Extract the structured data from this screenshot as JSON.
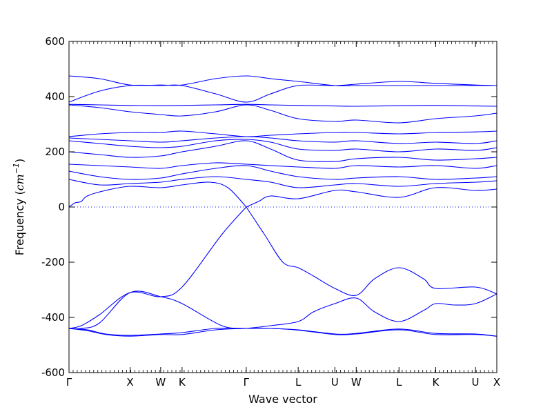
{
  "chart_data": {
    "type": "line",
    "title": "",
    "xlabel": "Wave vector",
    "ylabel": "Frequency (cm⁻¹)",
    "ylabel_main": "Frequency (",
    "ylabel_unit": "cm",
    "ylabel_exp": "−1",
    "ylabel_close": ")",
    "ylim": [
      -600,
      600
    ],
    "yticks": [
      -600,
      -400,
      -200,
      0,
      200,
      400,
      600
    ],
    "xlim": [
      0,
      7.0
    ],
    "high_symmetry_points": [
      {
        "label": "Γ",
        "x": 0.0
      },
      {
        "label": "X",
        "x": 1.0
      },
      {
        "label": "W",
        "x": 1.5
      },
      {
        "label": "K",
        "x": 1.85
      },
      {
        "label": "Γ",
        "x": 2.9
      },
      {
        "label": "L",
        "x": 3.75
      },
      {
        "label": "U",
        "x": 4.35
      },
      {
        "label": "W",
        "x": 4.7
      },
      {
        "label": "L",
        "x": 5.4
      },
      {
        "label": "K",
        "x": 6.0
      },
      {
        "label": "U",
        "x": 6.65
      },
      {
        "label": "X",
        "x": 7.0
      }
    ],
    "zero_line": true,
    "line_color": "#0000ff",
    "branches": [
      {
        "x": [
          0,
          0.2,
          0.5,
          1.0,
          1.5,
          1.85,
          2.5,
          2.9
        ],
        "y": [
          -440,
          -430,
          -390,
          -310,
          -325,
          -290,
          -100,
          0
        ]
      },
      {
        "x": [
          0,
          0.2,
          0.5,
          1.0,
          1.5,
          1.85,
          2.5,
          2.9
        ],
        "y": [
          -440,
          -440,
          -420,
          -310,
          -325,
          -350,
          -430,
          -440
        ]
      },
      {
        "x": [
          0,
          0.3,
          0.6,
          1.0,
          1.5,
          1.85,
          2.4,
          2.9
        ],
        "y": [
          -440,
          -445,
          -460,
          -465,
          -460,
          -455,
          -440,
          -440
        ]
      },
      {
        "x": [
          0,
          0.3,
          0.6,
          1.0,
          1.5,
          1.85,
          2.4,
          2.9
        ],
        "y": [
          -440,
          -448,
          -462,
          -468,
          -462,
          -462,
          -445,
          -440
        ]
      },
      {
        "x": [
          2.9,
          3.2,
          3.5,
          3.75,
          4.0,
          4.35,
          4.7,
          5.0,
          5.4,
          5.8,
          6.0,
          6.65,
          7.0
        ],
        "y": [
          0,
          -100,
          -200,
          -220,
          -250,
          -295,
          -320,
          -260,
          -220,
          -260,
          -295,
          -290,
          -315
        ]
      },
      {
        "x": [
          2.9,
          3.3,
          3.75,
          4.0,
          4.35,
          4.7,
          5.0,
          5.4,
          5.8,
          6.0,
          6.3,
          6.65,
          7.0
        ],
        "y": [
          -440,
          -430,
          -415,
          -380,
          -350,
          -330,
          -380,
          -415,
          -375,
          -350,
          -355,
          -350,
          -315
        ]
      },
      {
        "x": [
          2.9,
          3.3,
          3.75,
          4.35,
          4.7,
          5.4,
          6.0,
          6.65,
          7.0
        ],
        "y": [
          -440,
          -440,
          -445,
          -460,
          -458,
          -442,
          -458,
          -460,
          -468
        ]
      },
      {
        "x": [
          2.9,
          3.3,
          3.75,
          4.35,
          4.7,
          5.4,
          6.0,
          6.65,
          7.0
        ],
        "y": [
          -440,
          -440,
          -446,
          -462,
          -460,
          -445,
          -462,
          -462,
          -468
        ]
      },
      {
        "x": [
          0,
          0.1,
          0.2,
          0.3,
          0.6,
          1.0,
          1.5,
          1.85,
          2.3,
          2.6,
          2.9
        ],
        "y": [
          0,
          15,
          20,
          40,
          60,
          75,
          70,
          80,
          90,
          70,
          0
        ]
      },
      {
        "x": [
          2.9,
          3.1,
          3.3,
          3.75,
          4.35,
          4.7,
          5.4,
          6.0,
          6.65,
          7.0
        ],
        "y": [
          0,
          20,
          40,
          30,
          60,
          55,
          35,
          70,
          60,
          65
        ]
      },
      {
        "x": [
          0,
          0.5,
          1.0,
          1.5,
          1.85,
          2.4,
          2.9,
          3.3,
          3.75,
          4.35,
          4.7,
          5.4,
          6.0,
          6.65,
          7.0
        ],
        "y": [
          100,
          80,
          85,
          90,
          100,
          110,
          100,
          90,
          70,
          80,
          85,
          75,
          85,
          90,
          95
        ]
      },
      {
        "x": [
          0,
          0.5,
          1.0,
          1.5,
          1.85,
          2.4,
          2.9,
          3.3,
          3.75,
          4.35,
          4.7,
          5.4,
          6.0,
          6.65,
          7.0
        ],
        "y": [
          130,
          110,
          100,
          105,
          120,
          140,
          150,
          130,
          110,
          100,
          105,
          110,
          100,
          105,
          110
        ]
      },
      {
        "x": [
          0,
          0.5,
          1.0,
          1.5,
          1.85,
          2.4,
          2.9,
          3.3,
          3.75,
          4.35,
          4.7,
          5.4,
          6.0,
          6.65,
          7.0
        ],
        "y": [
          155,
          150,
          145,
          140,
          150,
          160,
          155,
          150,
          145,
          140,
          150,
          145,
          150,
          140,
          150
        ]
      },
      {
        "x": [
          0,
          0.5,
          1.0,
          1.5,
          1.85,
          2.4,
          2.9,
          3.3,
          3.75,
          4.35,
          4.7,
          5.4,
          6.0,
          6.65,
          7.0
        ],
        "y": [
          200,
          190,
          180,
          185,
          200,
          220,
          240,
          210,
          170,
          165,
          175,
          180,
          170,
          175,
          180
        ]
      },
      {
        "x": [
          0,
          0.5,
          1.0,
          1.5,
          1.85,
          2.4,
          2.9,
          3.3,
          3.75,
          4.35,
          4.7,
          5.4,
          6.0,
          6.65,
          7.0
        ],
        "y": [
          240,
          230,
          220,
          215,
          220,
          240,
          245,
          235,
          210,
          205,
          210,
          200,
          210,
          205,
          215
        ]
      },
      {
        "x": [
          0,
          0.5,
          1.0,
          1.5,
          1.85,
          2.4,
          2.9,
          3.3,
          3.75,
          4.35,
          4.7,
          5.4,
          6.0,
          6.65,
          7.0
        ],
        "y": [
          255,
          265,
          270,
          270,
          275,
          265,
          255,
          260,
          265,
          270,
          270,
          265,
          270,
          272,
          275
        ]
      },
      {
        "x": [
          0,
          0.5,
          1.0,
          1.5,
          1.85,
          2.4,
          2.9,
          3.3,
          3.75,
          4.35,
          4.7,
          5.4,
          6.0,
          6.65,
          7.0
        ],
        "y": [
          250,
          245,
          240,
          235,
          240,
          250,
          255,
          250,
          240,
          235,
          240,
          230,
          235,
          230,
          240
        ]
      },
      {
        "x": [
          0,
          0.5,
          1.0,
          1.5,
          1.85,
          2.4,
          2.9,
          3.3,
          3.75,
          4.35,
          4.7,
          5.4,
          6.0,
          6.65,
          7.0
        ],
        "y": [
          370,
          360,
          345,
          335,
          330,
          345,
          370,
          350,
          320,
          310,
          315,
          305,
          320,
          330,
          340
        ]
      },
      {
        "x": [
          0,
          0.5,
          1.0,
          1.5,
          1.85,
          2.4,
          2.9,
          3.3,
          3.75,
          4.35,
          4.7,
          5.4,
          6.0,
          6.65,
          7.0
        ],
        "y": [
          372,
          370,
          368,
          367,
          368,
          370,
          372,
          370,
          368,
          366,
          365,
          367,
          368,
          366,
          365
        ]
      },
      {
        "x": [
          0,
          0.5,
          1.0,
          1.5,
          1.85,
          2.4,
          2.9,
          3.3,
          3.75,
          4.35,
          4.7,
          5.4,
          6.0,
          6.65,
          7.0
        ],
        "y": [
          380,
          420,
          440,
          440,
          440,
          410,
          380,
          410,
          440,
          440,
          445,
          455,
          448,
          442,
          440
        ]
      },
      {
        "x": [
          0,
          0.5,
          1.0,
          1.5,
          1.85,
          2.4,
          2.9,
          3.3,
          3.75,
          4.35,
          4.7,
          5.4,
          6.0,
          6.65,
          7.0
        ],
        "y": [
          475,
          465,
          442,
          442,
          442,
          465,
          475,
          465,
          455,
          440,
          440,
          440,
          440,
          440,
          440
        ]
      }
    ]
  }
}
